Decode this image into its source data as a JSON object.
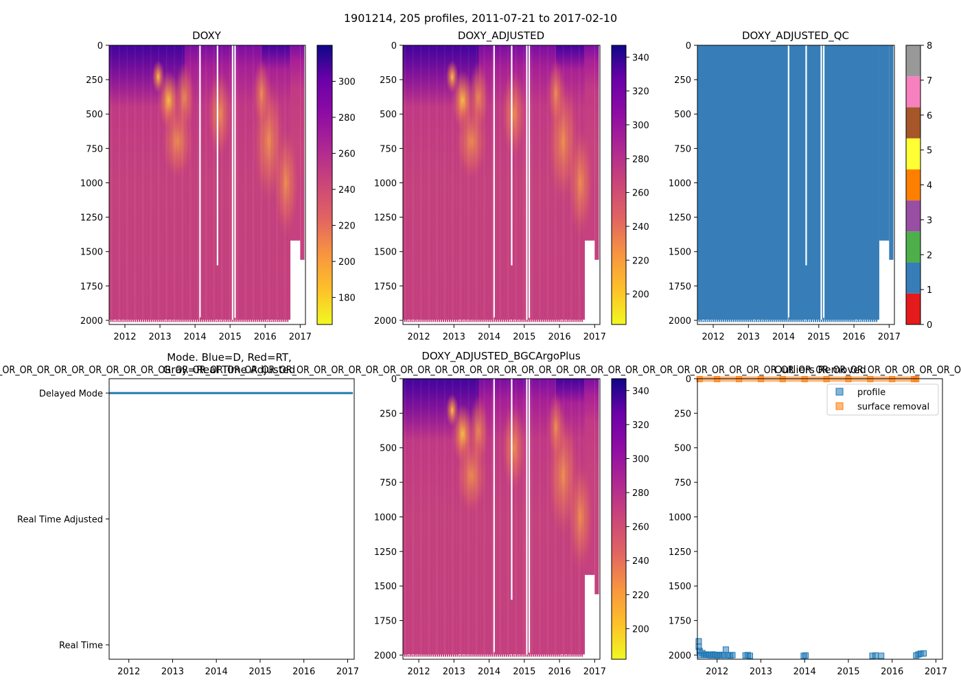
{
  "figure": {
    "suptitle": "1901214, 205 profiles, 2011-07-21 to 2017-02-10"
  },
  "chart_data": [
    {
      "id": "doxy",
      "type": "heatmap",
      "title": "DOXY",
      "xlim": [
        2011.55,
        2017.15
      ],
      "ylim": [
        2030,
        0
      ],
      "xticks": [
        2012,
        2013,
        2014,
        2015,
        2016,
        2017
      ],
      "yticks": [
        0,
        250,
        500,
        750,
        1000,
        1250,
        1500,
        1750,
        2000
      ],
      "colorbar": {
        "cmap": "plasma_r",
        "range": [
          165,
          320
        ],
        "ticks": [
          180,
          200,
          220,
          240,
          260,
          280,
          300
        ]
      }
    },
    {
      "id": "doxy_adjusted",
      "type": "heatmap",
      "title": "DOXY_ADJUSTED",
      "xlim": [
        2011.55,
        2017.15
      ],
      "ylim": [
        2030,
        0
      ],
      "xticks": [
        2012,
        2013,
        2014,
        2015,
        2016,
        2017
      ],
      "yticks": [
        0,
        250,
        500,
        750,
        1000,
        1250,
        1500,
        1750,
        2000
      ],
      "colorbar": {
        "cmap": "plasma_r",
        "range": [
          182,
          347
        ],
        "ticks": [
          200,
          220,
          240,
          260,
          280,
          300,
          320,
          340
        ]
      }
    },
    {
      "id": "doxy_adjusted_qc",
      "type": "heatmap",
      "title": "DOXY_ADJUSTED_QC",
      "xlim": [
        2011.55,
        2017.15
      ],
      "ylim": [
        2030,
        0
      ],
      "xticks": [
        2012,
        2013,
        2014,
        2015,
        2016,
        2017
      ],
      "yticks": [
        0,
        250,
        500,
        750,
        1000,
        1250,
        1500,
        1750,
        2000
      ],
      "values": "all flag 1 (good)",
      "colorbar": {
        "range": [
          0,
          8
        ],
        "ticks": [
          0,
          1,
          2,
          3,
          4,
          5,
          6,
          7,
          8
        ],
        "colors": [
          "#e41a1c",
          "#377eb8",
          "#4daf4a",
          "#984ea3",
          "#ff7f00",
          "#ffff33",
          "#a65628",
          "#f781bf",
          "#999999"
        ]
      }
    },
    {
      "id": "mode",
      "type": "scatter",
      "title": "Mode. Blue=D, Red=RT,\nGray=Real Time Adjusted",
      "title_line1": "Mode. Blue=D, Red=RT,",
      "title_line2": "Gray=Real Time Adjusted",
      "overlay_text": "_OR_OR_OR_OR_OR_OR_OR_OR_OR_OR_OR_OR_OR_OR_OR_OR_OR_OR_OR_OR_OR_OR_OR_OR_OR_OR_OR_OR_OR_OR_OR_OR_OR_OR_OR_OR_OR_OR_OR_OR_OR_OR_OR_OR_OR_OR_OR_OR_OR_OR_OR_OR_OR_OR_OR_O",
      "categories": [
        "Delayed Mode",
        "Real Time Adjusted",
        "Real Time"
      ],
      "xlim": [
        2011.55,
        2017.15
      ],
      "xticks": [
        2012,
        2013,
        2014,
        2015,
        2016,
        2017
      ],
      "series": [
        {
          "name": "Delayed Mode",
          "value": "Delayed Mode",
          "x_range": [
            2011.55,
            2017.12
          ],
          "color": "#1f77b4"
        }
      ]
    },
    {
      "id": "doxy_bgcargoplus",
      "type": "heatmap",
      "title": "DOXY_ADJUSTED_BGCArgoPlus",
      "xlim": [
        2011.55,
        2017.15
      ],
      "ylim": [
        2030,
        0
      ],
      "xticks": [
        2012,
        2013,
        2014,
        2015,
        2016,
        2017
      ],
      "yticks": [
        0,
        250,
        500,
        750,
        1000,
        1250,
        1500,
        1750,
        2000
      ],
      "colorbar": {
        "cmap": "plasma_r",
        "range": [
          182,
          347
        ],
        "ticks": [
          200,
          220,
          240,
          260,
          280,
          300,
          320,
          340
        ]
      }
    },
    {
      "id": "outliers",
      "type": "scatter",
      "title": "Outliers Removed",
      "xlim": [
        2011.55,
        2017.15
      ],
      "ylim": [
        2030,
        0
      ],
      "xticks": [
        2012,
        2013,
        2014,
        2015,
        2016,
        2017
      ],
      "yticks": [
        0,
        250,
        500,
        750,
        1000,
        1250,
        1500,
        1750,
        2000
      ],
      "legend": {
        "placement": "top-right",
        "entries": [
          "profile",
          "surface removal"
        ]
      },
      "series": [
        {
          "name": "profile",
          "color": "#1f77b4",
          "points": [
            [
              2011.58,
              1900
            ],
            [
              2011.58,
              1940
            ],
            [
              2011.6,
              1970
            ],
            [
              2011.62,
              2000
            ],
            [
              2011.66,
              1985
            ],
            [
              2011.7,
              2000
            ],
            [
              2011.75,
              1995
            ],
            [
              2011.8,
              2000
            ],
            [
              2011.85,
              2002
            ],
            [
              2011.9,
              1995
            ],
            [
              2011.95,
              2000
            ],
            [
              2012.0,
              2003
            ],
            [
              2012.05,
              1998
            ],
            [
              2012.1,
              2000
            ],
            [
              2012.15,
              2002
            ],
            [
              2012.2,
              1960
            ],
            [
              2012.25,
              2000
            ],
            [
              2012.3,
              2003
            ],
            [
              2012.35,
              2000
            ],
            [
              2012.65,
              2003
            ],
            [
              2012.7,
              2000
            ],
            [
              2012.75,
              2005
            ],
            [
              2013.98,
              2005
            ],
            [
              2014.02,
              2003
            ],
            [
              2015.55,
              2005
            ],
            [
              2015.62,
              2003
            ],
            [
              2015.75,
              2005
            ],
            [
              2016.55,
              2003
            ],
            [
              2016.6,
              1995
            ],
            [
              2016.65,
              1990
            ],
            [
              2016.72,
              1988
            ]
          ]
        },
        {
          "name": "surface removal",
          "color": "#ff7f0e",
          "points": [
            [
              2011.6,
              3
            ],
            [
              2012.0,
              3
            ],
            [
              2012.5,
              3
            ],
            [
              2013.0,
              3
            ],
            [
              2013.5,
              3
            ],
            [
              2014.0,
              3
            ],
            [
              2014.5,
              3
            ],
            [
              2015.0,
              3
            ],
            [
              2015.5,
              3
            ],
            [
              2016.0,
              3
            ],
            [
              2016.5,
              3
            ],
            [
              2016.55,
              3
            ]
          ]
        }
      ]
    }
  ]
}
